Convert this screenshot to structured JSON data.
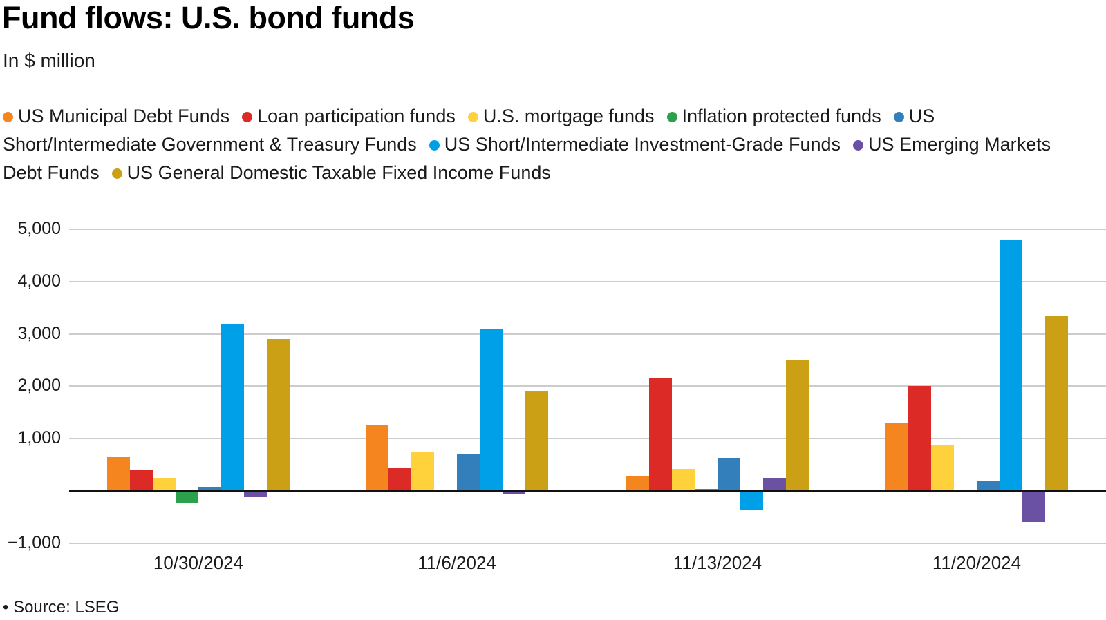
{
  "title": "Fund flows: U.S. bond funds",
  "subtitle": "In $ million",
  "source": "• Source: LSEG",
  "chart_data": {
    "type": "bar",
    "title": "Fund flows: U.S. bond funds",
    "xlabel": "",
    "ylabel": "In $ million",
    "categories": [
      "10/30/2024",
      "11/6/2024",
      "11/13/2024",
      "11/20/2024"
    ],
    "series": [
      {
        "name": "US Municipal Debt Funds",
        "color": "#F5851F",
        "values": [
          650,
          1250,
          290,
          1290
        ]
      },
      {
        "name": "Loan participation funds",
        "color": "#DC2B26",
        "values": [
          390,
          430,
          2150,
          2000
        ]
      },
      {
        "name": "U.S. mortgage funds",
        "color": "#FFD23C",
        "values": [
          240,
          750,
          420,
          870
        ]
      },
      {
        "name": "Inflation protected funds",
        "color": "#2DA04D",
        "values": [
          -220,
          -30,
          35,
          20
        ]
      },
      {
        "name": "US Short/Intermediate Government & Treasury Funds",
        "color": "#337FBB",
        "values": [
          70,
          700,
          620,
          200
        ]
      },
      {
        "name": "US Short/Intermediate Investment-Grade Funds",
        "color": "#00A0E8",
        "values": [
          3180,
          3100,
          -370,
          4800
        ]
      },
      {
        "name": "US Emerging Markets Debt Funds",
        "color": "#6A51A3",
        "values": [
          -120,
          -50,
          250,
          -590
        ]
      },
      {
        "name": "US General Domestic Taxable Fixed Income Funds",
        "color": "#CBA015",
        "values": [
          2900,
          1900,
          2500,
          3350
        ]
      }
    ],
    "ylim": [
      -1000,
      5000
    ],
    "yticks": [
      5000,
      4000,
      3000,
      2000,
      1000,
      -1000
    ],
    "ytick_labels": [
      "5,000",
      "4,000",
      "3,000",
      "2,000",
      "1,000",
      "−1,000"
    ],
    "zero_baseline": true,
    "grid": true,
    "legend_position": "top"
  }
}
